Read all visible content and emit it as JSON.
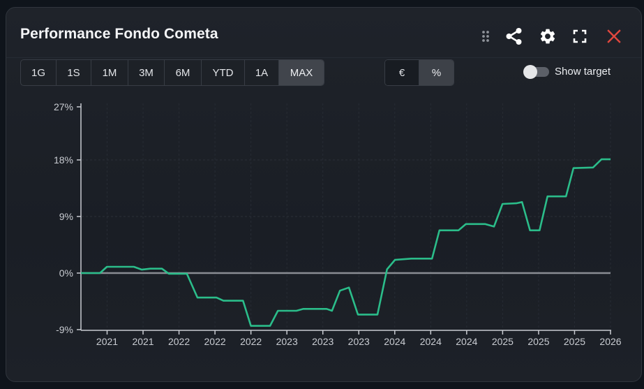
{
  "panel": {
    "title": "Performance Fondo Cometa",
    "icons": [
      "drag-handle-icon",
      "share-icon",
      "gear-icon",
      "expand-icon",
      "close-icon"
    ],
    "colors": {
      "close": "#e0473e",
      "line": "#2bbd8a",
      "zero_line": "#8a8d93"
    }
  },
  "range_buttons": [
    {
      "label": "1G",
      "active": false
    },
    {
      "label": "1S",
      "active": false
    },
    {
      "label": "1M",
      "active": false
    },
    {
      "label": "3M",
      "active": false
    },
    {
      "label": "6M",
      "active": false
    },
    {
      "label": "YTD",
      "active": false
    },
    {
      "label": "1A",
      "active": false
    },
    {
      "label": "MAX",
      "active": true
    }
  ],
  "unit_buttons": [
    {
      "label": "€",
      "active": false
    },
    {
      "label": "%",
      "active": true
    }
  ],
  "toggle": {
    "label": "Show target",
    "on": false
  },
  "chart_data": {
    "type": "line",
    "title": "Performance Fondo Cometa",
    "xlabel": "",
    "ylabel": "",
    "ylim": [
      -9,
      27
    ],
    "yticks": [
      "27%",
      "18%",
      "9%",
      "0%",
      "-9%"
    ],
    "xticks": [
      "2021",
      "2021",
      "2022",
      "2022",
      "2022",
      "2023",
      "2023",
      "2023",
      "2024",
      "2024",
      "2024",
      "2025",
      "2025",
      "2025",
      "2026"
    ],
    "grid": true,
    "legend": null,
    "series": [
      {
        "name": "Fondo Cometa",
        "color": "#2bbd8a",
        "points": [
          [
            0.0,
            0.0
          ],
          [
            0.036,
            0.0
          ],
          [
            0.049,
            1.0
          ],
          [
            0.1,
            1.0
          ],
          [
            0.115,
            0.55
          ],
          [
            0.131,
            0.7
          ],
          [
            0.153,
            0.7
          ],
          [
            0.166,
            -0.1
          ],
          [
            0.2,
            -0.1
          ],
          [
            0.22,
            -3.9
          ],
          [
            0.256,
            -3.9
          ],
          [
            0.269,
            -4.4
          ],
          [
            0.306,
            -4.4
          ],
          [
            0.321,
            -8.4
          ],
          [
            0.357,
            -8.4
          ],
          [
            0.372,
            -6.0
          ],
          [
            0.407,
            -6.0
          ],
          [
            0.42,
            -5.7
          ],
          [
            0.464,
            -5.7
          ],
          [
            0.474,
            -6.0
          ],
          [
            0.489,
            -2.8
          ],
          [
            0.506,
            -2.3
          ],
          [
            0.523,
            -6.6
          ],
          [
            0.56,
            -6.6
          ],
          [
            0.578,
            0.6
          ],
          [
            0.593,
            2.1
          ],
          [
            0.624,
            2.3
          ],
          [
            0.663,
            2.3
          ],
          [
            0.677,
            6.8
          ],
          [
            0.713,
            6.8
          ],
          [
            0.727,
            7.8
          ],
          [
            0.763,
            7.8
          ],
          [
            0.78,
            7.4
          ],
          [
            0.796,
            11.0
          ],
          [
            0.822,
            11.1
          ],
          [
            0.833,
            11.3
          ],
          [
            0.848,
            6.8
          ],
          [
            0.866,
            6.8
          ],
          [
            0.881,
            12.2
          ],
          [
            0.916,
            12.2
          ],
          [
            0.93,
            16.7
          ],
          [
            0.967,
            16.8
          ],
          [
            0.983,
            18.1
          ],
          [
            1.0,
            18.1
          ]
        ]
      }
    ],
    "reference_line": {
      "value": 0,
      "color": "#8a8d93"
    }
  }
}
